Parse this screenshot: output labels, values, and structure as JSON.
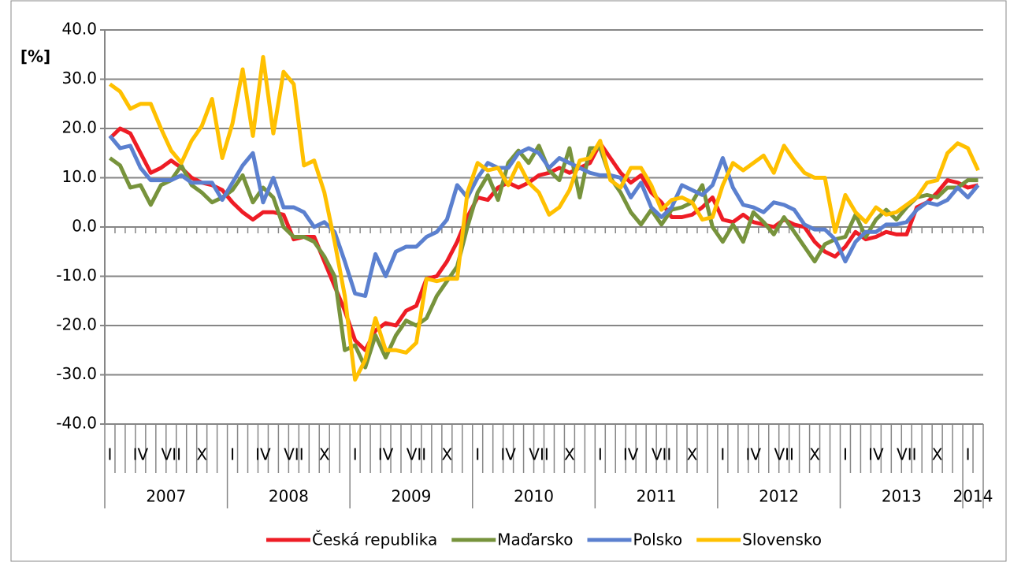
{
  "chart_data": {
    "type": "line",
    "y_label": "[%]",
    "ylim": [
      -40,
      40
    ],
    "yticks": [
      {
        "value": -40,
        "label": "-40.0"
      },
      {
        "value": -30,
        "label": "-30.0"
      },
      {
        "value": -20,
        "label": "-20.0"
      },
      {
        "value": -10,
        "label": "-10.0"
      },
      {
        "value": 0,
        "label": "0.0"
      },
      {
        "value": 10,
        "label": "10.0"
      },
      {
        "value": 20,
        "label": "20.0"
      },
      {
        "value": 30,
        "label": "30.0"
      },
      {
        "value": 40,
        "label": "40.0"
      }
    ],
    "grid": true,
    "legend": "bottom",
    "categories": [
      "I",
      null,
      null,
      "IV",
      null,
      null,
      "VII",
      null,
      null,
      "X",
      null,
      null,
      "I",
      null,
      null,
      "IV",
      null,
      null,
      "VII",
      null,
      null,
      "X",
      null,
      null,
      "I",
      null,
      null,
      "IV",
      null,
      null,
      "VII",
      null,
      null,
      "X",
      null,
      null,
      "I",
      null,
      null,
      "IV",
      null,
      null,
      "VII",
      null,
      null,
      "X",
      null,
      null,
      "I",
      null,
      null,
      "IV",
      null,
      null,
      "VII",
      null,
      null,
      "X",
      null,
      null,
      "I",
      null,
      null,
      "IV",
      null,
      null,
      "VII",
      null,
      null,
      "X",
      null,
      null,
      "I",
      null,
      null,
      "IV",
      null,
      null,
      "VII",
      null,
      null,
      "X",
      null,
      null,
      "I",
      null
    ],
    "years": [
      "2007",
      "2008",
      "2009",
      "2010",
      "2011",
      "2012",
      "2013",
      "2014"
    ],
    "series": [
      {
        "name": "Česká republika",
        "color": "#ee1c25",
        "values": [
          18,
          20,
          19,
          15,
          11,
          12,
          13.5,
          12,
          10,
          9,
          8.5,
          7.5,
          5,
          3,
          1.5,
          3,
          3,
          2.5,
          -2.5,
          -2,
          -2,
          -7,
          -12,
          -17,
          -23,
          -25,
          -21,
          -19.5,
          -20,
          -17,
          -16,
          -10.5,
          -10,
          -7,
          -3,
          2,
          6,
          5.5,
          8,
          9,
          8,
          9,
          10.5,
          11,
          12,
          11,
          12,
          13,
          17,
          14,
          11,
          9,
          10.5,
          7,
          5,
          2,
          2,
          2.5,
          4,
          6,
          1.5,
          1,
          2.5,
          1,
          0.5,
          0,
          1.5,
          0.5,
          0,
          -3,
          -5,
          -6,
          -4,
          -1,
          -2.5,
          -2,
          -1,
          -1.5,
          -1.5,
          4,
          5,
          7,
          9.5,
          9,
          8,
          8.5
        ]
      },
      {
        "name": "Maďarsko",
        "color": "#77933c",
        "values": [
          14,
          12.5,
          8,
          8.5,
          4.5,
          8.5,
          9.5,
          12.5,
          8.5,
          7,
          5,
          6,
          7.5,
          10.5,
          5,
          8,
          6,
          0,
          -2,
          -2,
          -3,
          -6,
          -10,
          -25,
          -24,
          -28.5,
          -22,
          -26.5,
          -22,
          -19,
          -20,
          -18.5,
          -14,
          -11,
          -8,
          0,
          7,
          10.5,
          5.5,
          13,
          15.5,
          13,
          16.5,
          11.5,
          9.5,
          16,
          6,
          16,
          16,
          10,
          7,
          3,
          0.5,
          3.5,
          0.5,
          3.5,
          4,
          5,
          8.5,
          0,
          -3,
          0.5,
          -3,
          3,
          1,
          -1.5,
          2,
          -1,
          -4,
          -7,
          -3.5,
          -2.5,
          -2,
          2.5,
          -2,
          1.5,
          3.5,
          1.5,
          4,
          6,
          6.5,
          6,
          8,
          8,
          9.5,
          9.5
        ]
      },
      {
        "name": "Polsko",
        "color": "#5b80cf",
        "values": [
          18.5,
          16,
          16.5,
          12,
          9.5,
          9.5,
          9.5,
          10.5,
          9,
          9,
          9,
          5.5,
          9,
          12.5,
          15,
          5,
          10,
          4,
          4,
          3,
          0,
          1,
          -1,
          -7,
          -13.5,
          -14,
          -5.5,
          -10,
          -5,
          -4,
          -4,
          -2,
          -1,
          1.5,
          8.5,
          6,
          10,
          13,
          12,
          12,
          15,
          16,
          15,
          12,
          14,
          13,
          12,
          11,
          10.5,
          10.5,
          10,
          6,
          9,
          4,
          2,
          4,
          8.5,
          7.5,
          6.5,
          8.5,
          14,
          8,
          4.5,
          4,
          3,
          5,
          4.5,
          3.5,
          0.5,
          -0.5,
          -0.5,
          -2.5,
          -7,
          -3,
          -1,
          -1,
          0.5,
          0.5,
          1,
          3.5,
          5,
          4.5,
          5.5,
          8,
          6,
          8.5
        ]
      },
      {
        "name": "Slovensko",
        "color": "#ffc000",
        "values": [
          29,
          27.5,
          24,
          25,
          25,
          20,
          15.5,
          13,
          17.5,
          20.5,
          26,
          14,
          21,
          32,
          18.5,
          34.5,
          19,
          31.5,
          29,
          12.5,
          13.5,
          7,
          -3,
          -14,
          -31,
          -27,
          -18.5,
          -25,
          -25,
          -25.5,
          -23.5,
          -10.5,
          -11,
          -10.5,
          -10.5,
          7,
          13,
          11.5,
          12,
          8.5,
          13,
          9,
          7,
          2.5,
          4,
          7.5,
          13.5,
          14,
          17.5,
          9.5,
          8,
          12,
          12,
          8.5,
          3.5,
          5.5,
          6,
          5,
          1.5,
          2,
          8.5,
          13,
          11.5,
          13,
          14.5,
          11,
          16.5,
          13.5,
          11,
          10,
          10,
          -1,
          6.5,
          3,
          1,
          4,
          2.5,
          3,
          4.5,
          6,
          9,
          9.5,
          15,
          17,
          16,
          11.5
        ]
      }
    ]
  }
}
